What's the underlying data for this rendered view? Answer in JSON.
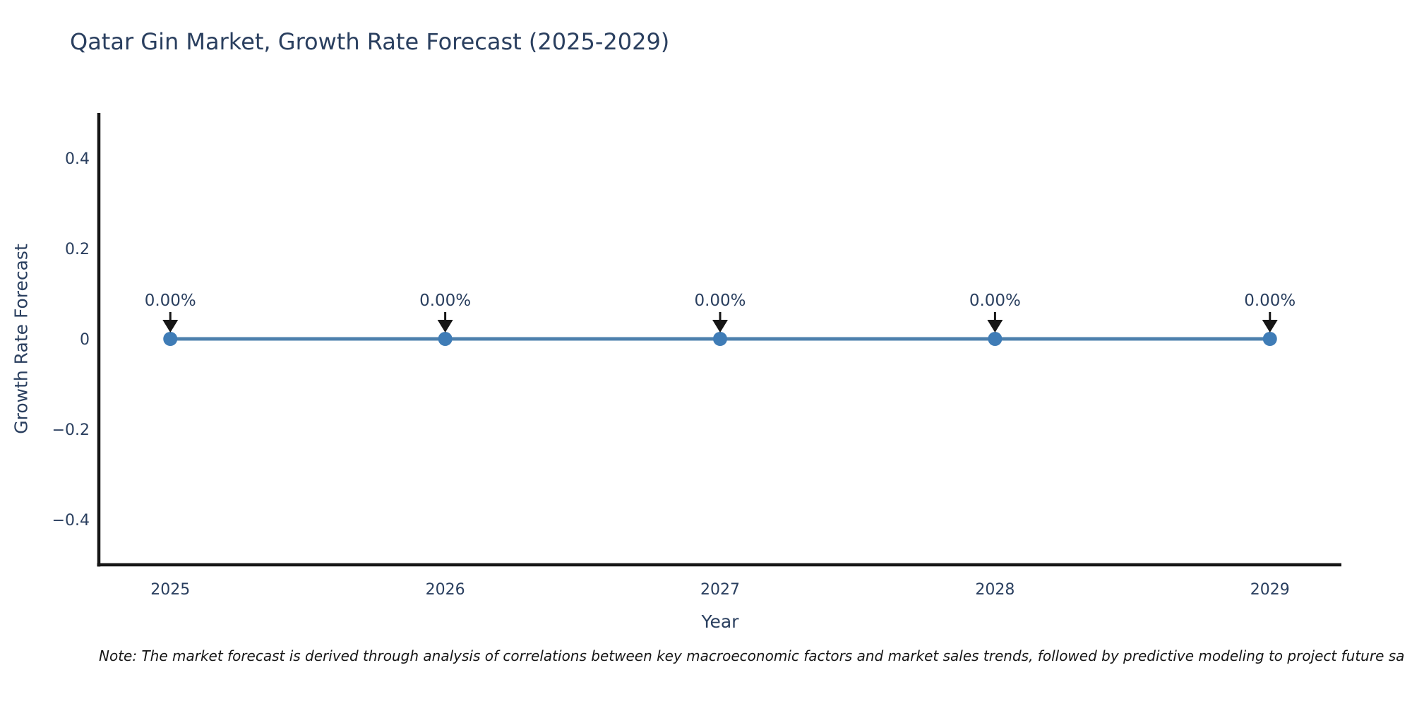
{
  "figure": {
    "note": "Note: The market forecast is derived through analysis of correlations between key macroeconomic factors and market sales trends, followed by predictive modeling to project future sa"
  },
  "chart_data": {
    "type": "line",
    "title": "Qatar Gin Market, Growth Rate Forecast (2025-2029)",
    "xlabel": "Year",
    "ylabel": "Growth Rate Forecast",
    "x": [
      2025,
      2026,
      2027,
      2028,
      2029
    ],
    "series": [
      {
        "name": "Growth Rate Forecast",
        "values": [
          0,
          0,
          0,
          0,
          0
        ]
      }
    ],
    "point_labels": [
      "0.00%",
      "0.00%",
      "0.00%",
      "0.00%",
      "0.00%"
    ],
    "xticks": {
      "labels": [
        "2025",
        "2026",
        "2027",
        "2028",
        "2029"
      ],
      "values": [
        2025,
        2026,
        2027,
        2028,
        2029
      ]
    },
    "yticks": {
      "labels": [
        "0.4",
        "0.2",
        "0",
        "−0.2",
        "−0.4"
      ],
      "values": [
        0.4,
        0.2,
        0,
        -0.2,
        -0.4
      ]
    },
    "xlim": [
      2024.74,
      2029.26
    ],
    "ylim": [
      -0.5,
      0.5
    ],
    "grid": false,
    "legend": false,
    "annotation_style": "downward-arrow",
    "colors": {
      "line": "#4d80ad",
      "marker": "#3f7cb6",
      "axis": "#161616",
      "text": "#2a3f5f",
      "arrow": "#161616"
    }
  }
}
